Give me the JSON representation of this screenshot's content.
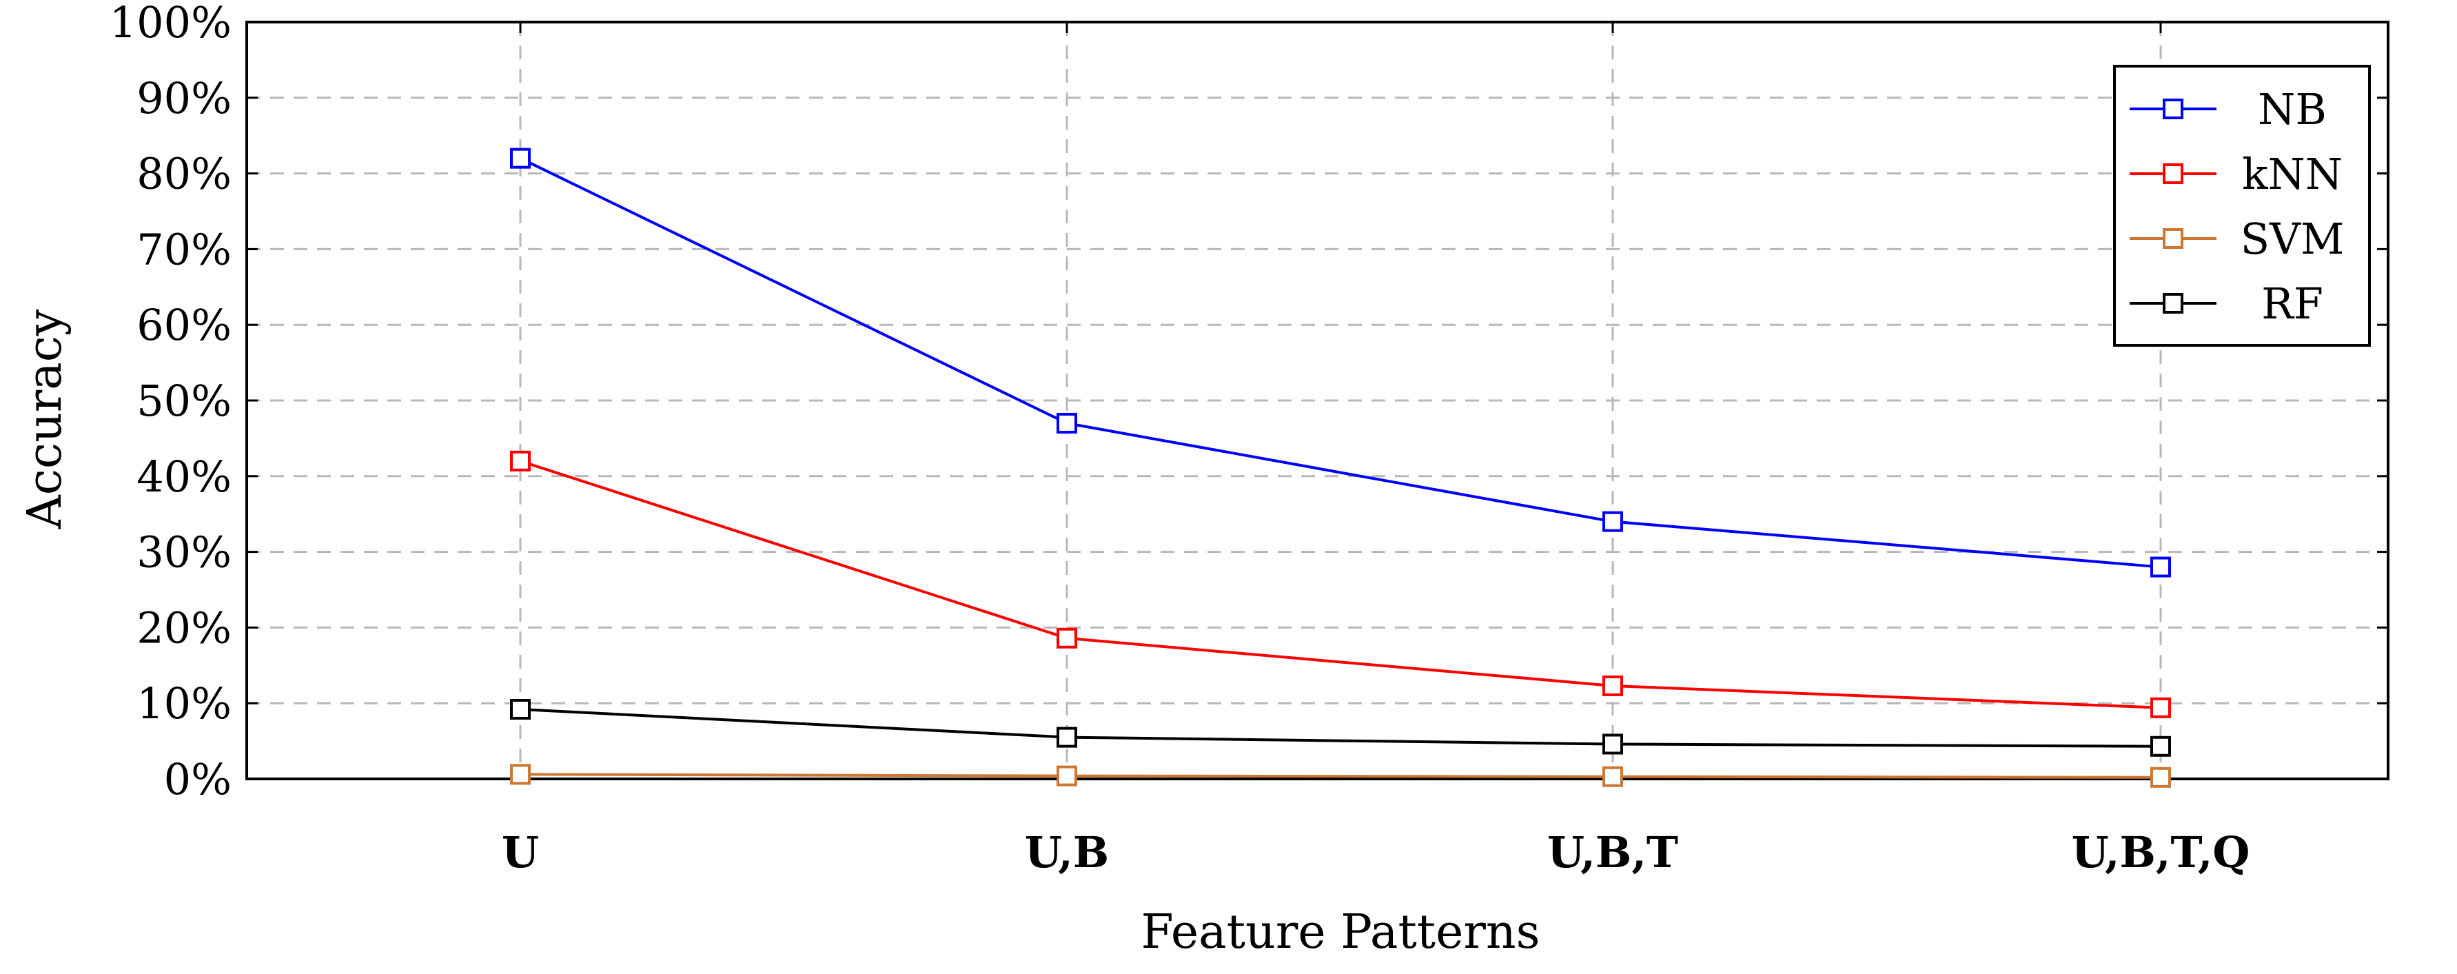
{
  "chart_data": {
    "type": "line",
    "title": "",
    "xlabel": "Feature Patterns",
    "ylabel": "Accuracy",
    "categories": [
      "U",
      "U,B",
      "U,B,T",
      "U,B,T,Q"
    ],
    "ylim": [
      0,
      100
    ],
    "y_ticks": [
      0,
      10,
      20,
      30,
      40,
      50,
      60,
      70,
      80,
      90,
      100
    ],
    "y_tick_suffix": "%",
    "grid": true,
    "legend_position": "top-right",
    "marker": "square",
    "series": [
      {
        "name": "NB",
        "color": "#0000ff",
        "values": [
          82,
          47,
          34,
          28
        ]
      },
      {
        "name": "kNN",
        "color": "#ff0000",
        "values": [
          42,
          18.6,
          12.3,
          9.4
        ]
      },
      {
        "name": "SVM",
        "color": "#cc7733",
        "values": [
          0.6,
          0.4,
          0.3,
          0.2
        ]
      },
      {
        "name": "RF",
        "color": "#000000",
        "values": [
          9.2,
          5.5,
          4.6,
          4.3
        ]
      }
    ]
  }
}
